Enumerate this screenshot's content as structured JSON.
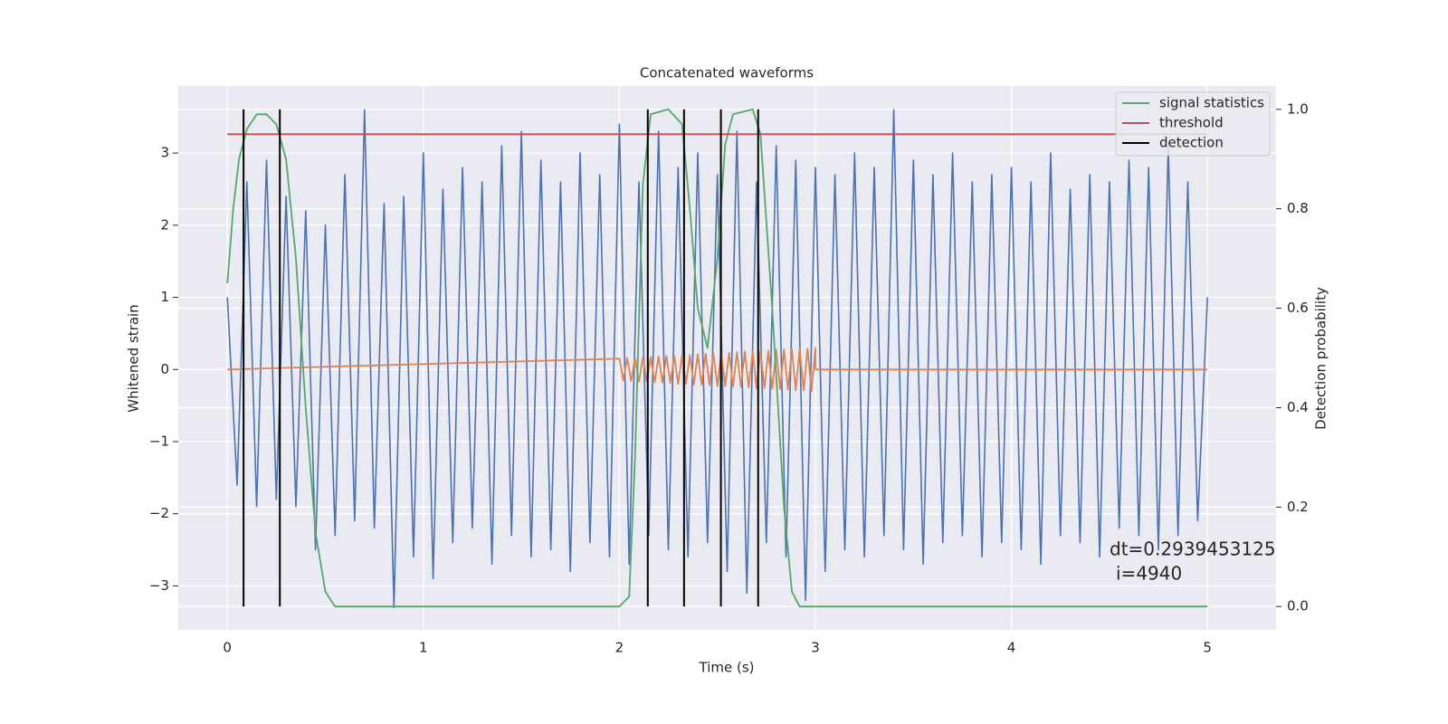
{
  "chart_data": {
    "type": "line",
    "title": "Concatenated waveforms",
    "xlabel": "Time (s)",
    "ylabel": "Whitened strain",
    "y2label": "Detection probability",
    "xlim": [
      -0.25,
      5.35
    ],
    "ylim": [
      -3.61,
      3.93
    ],
    "y2lim": [
      -0.047,
      1.047
    ],
    "xticks": [
      0,
      1,
      2,
      3,
      4,
      5
    ],
    "yticks": [
      {
        "value": -3,
        "label": "−3"
      },
      {
        "value": -2,
        "label": "−2"
      },
      {
        "value": -1,
        "label": "−1"
      },
      0,
      1,
      2,
      3
    ],
    "y2ticks": [
      {
        "value": 0,
        "label": "0.0"
      },
      0.2,
      0.4,
      0.6,
      0.8,
      {
        "value": 1,
        "label": "1.0"
      }
    ],
    "grid": true,
    "legend": "upper right",
    "annotations": [
      "dt=0.2939453125",
      "i=4940"
    ],
    "series": [
      {
        "color": "#4c72b0",
        "axis": "y",
        "x": [
          0,
          0.05,
          0.1,
          0.15,
          0.2,
          0.25,
          0.3,
          0.35,
          0.4,
          0.45,
          0.5,
          0.55,
          0.6,
          0.65,
          0.7,
          0.75,
          0.8,
          0.85,
          0.9,
          0.95,
          1,
          1.05,
          1.1,
          1.15,
          1.2,
          1.25,
          1.3,
          1.35,
          1.4,
          1.45,
          1.5,
          1.55,
          1.6,
          1.65,
          1.7,
          1.75,
          1.8,
          1.85,
          1.9,
          1.95,
          2,
          2.05,
          2.1,
          2.15,
          2.2,
          2.25,
          2.3,
          2.35,
          2.4,
          2.45,
          2.5,
          2.55,
          2.6,
          2.65,
          2.7,
          2.75,
          2.8,
          2.85,
          2.9,
          2.95,
          3,
          3.05,
          3.1,
          3.15,
          3.2,
          3.25,
          3.3,
          3.35,
          3.4,
          3.45,
          3.5,
          3.55,
          3.6,
          3.65,
          3.7,
          3.75,
          3.8,
          3.85,
          3.9,
          3.95,
          4,
          4.05,
          4.1,
          4.15,
          4.2,
          4.25,
          4.3,
          4.35,
          4.4,
          4.45,
          4.5,
          4.55,
          4.6,
          4.65,
          4.7,
          4.75,
          4.8,
          4.85,
          4.9,
          4.95,
          5
        ],
        "values": [
          1.0,
          -1.6,
          2.6,
          -1.9,
          2.9,
          -1.8,
          2.4,
          -1.9,
          2.2,
          -2.5,
          2.0,
          -2.3,
          2.7,
          -2.1,
          3.6,
          -2.2,
          2.3,
          -3.3,
          2.4,
          -2.6,
          3.0,
          -2.9,
          2.5,
          -2.4,
          2.8,
          -2.2,
          2.6,
          -2.7,
          3.1,
          -2.3,
          3.3,
          -2.6,
          2.9,
          -2.5,
          2.6,
          -2.8,
          3.0,
          -2.4,
          2.7,
          -2.6,
          3.4,
          -2.7,
          2.6,
          -2.3,
          3.3,
          -2.5,
          2.8,
          -2.6,
          3.0,
          -2.4,
          2.7,
          -2.8,
          3.3,
          -3.1,
          2.6,
          -2.4,
          3.1,
          -2.6,
          2.9,
          -3.2,
          2.8,
          -2.8,
          2.7,
          -2.5,
          3.0,
          -2.6,
          2.8,
          -2.3,
          3.6,
          -2.5,
          2.9,
          -2.7,
          2.7,
          -2.4,
          3.0,
          -2.3,
          2.6,
          -2.6,
          2.7,
          -2.4,
          2.8,
          -2.5,
          2.6,
          -2.7,
          3.0,
          -2.3,
          2.5,
          -2.4,
          2.7,
          -2.6,
          2.6,
          -2.2,
          2.9,
          -2.3,
          2.8,
          -2.5,
          3.1,
          -2.3,
          2.6,
          -2.1,
          1.0
        ]
      },
      {
        "color": "#dd8452",
        "axis": "y",
        "x": [
          0,
          2,
          2.02,
          2.04,
          2.06,
          2.08,
          2.1,
          2.12,
          2.14,
          2.16,
          2.18,
          2.2,
          2.22,
          2.24,
          2.26,
          2.28,
          2.3,
          2.32,
          2.34,
          2.36,
          2.38,
          2.4,
          2.42,
          2.44,
          2.46,
          2.48,
          2.5,
          2.52,
          2.54,
          2.56,
          2.58,
          2.6,
          2.62,
          2.64,
          2.66,
          2.68,
          2.7,
          2.72,
          2.74,
          2.76,
          2.78,
          2.8,
          2.82,
          2.84,
          2.86,
          2.88,
          2.9,
          2.92,
          2.94,
          2.96,
          2.98,
          3,
          3,
          5
        ],
        "values": [
          0,
          0.15,
          -0.15,
          0.16,
          -0.16,
          0.16,
          -0.17,
          0.17,
          -0.17,
          0.17,
          -0.18,
          0.18,
          -0.18,
          0.19,
          -0.19,
          0.19,
          -0.2,
          0.2,
          -0.2,
          0.2,
          -0.21,
          0.21,
          -0.21,
          0.22,
          -0.22,
          0.22,
          -0.23,
          0.23,
          -0.23,
          0.23,
          -0.24,
          0.24,
          -0.24,
          0.25,
          -0.25,
          0.25,
          -0.26,
          0.26,
          -0.26,
          0.26,
          -0.27,
          0.27,
          -0.27,
          0.28,
          -0.28,
          0.28,
          -0.29,
          0.29,
          -0.29,
          0.29,
          -0.3,
          0.3,
          0,
          0
        ]
      },
      {
        "name": "signal statistics",
        "color": "#55a868",
        "axis": "y2",
        "x": [
          0,
          0.03,
          0.06,
          0.1,
          0.15,
          0.2,
          0.25,
          0.3,
          0.35,
          0.4,
          0.45,
          0.5,
          0.55,
          1,
          2,
          2.05,
          2.08,
          2.12,
          2.16,
          2.25,
          2.32,
          2.36,
          2.4,
          2.45,
          2.5,
          2.54,
          2.58,
          2.68,
          2.72,
          2.78,
          2.84,
          2.88,
          2.92,
          5
        ],
        "values": [
          0.65,
          0.8,
          0.9,
          0.96,
          0.99,
          0.99,
          0.97,
          0.9,
          0.7,
          0.4,
          0.15,
          0.03,
          0,
          0,
          0,
          0.02,
          0.3,
          0.85,
          0.99,
          1,
          0.97,
          0.8,
          0.6,
          0.52,
          0.7,
          0.93,
          0.99,
          1,
          0.95,
          0.6,
          0.2,
          0.03,
          0,
          0
        ]
      },
      {
        "name": "threshold",
        "color": "#c44e52",
        "axis": "y2",
        "x": [
          0,
          5
        ],
        "values": [
          0.95,
          0.95
        ]
      },
      {
        "name": "detection",
        "color": "#000000",
        "axis": "y2",
        "type": "vlines",
        "x": [
          0.083,
          0.268,
          2.145,
          2.33,
          2.518,
          2.708
        ],
        "ymin": 0,
        "ymax": 1
      }
    ]
  }
}
